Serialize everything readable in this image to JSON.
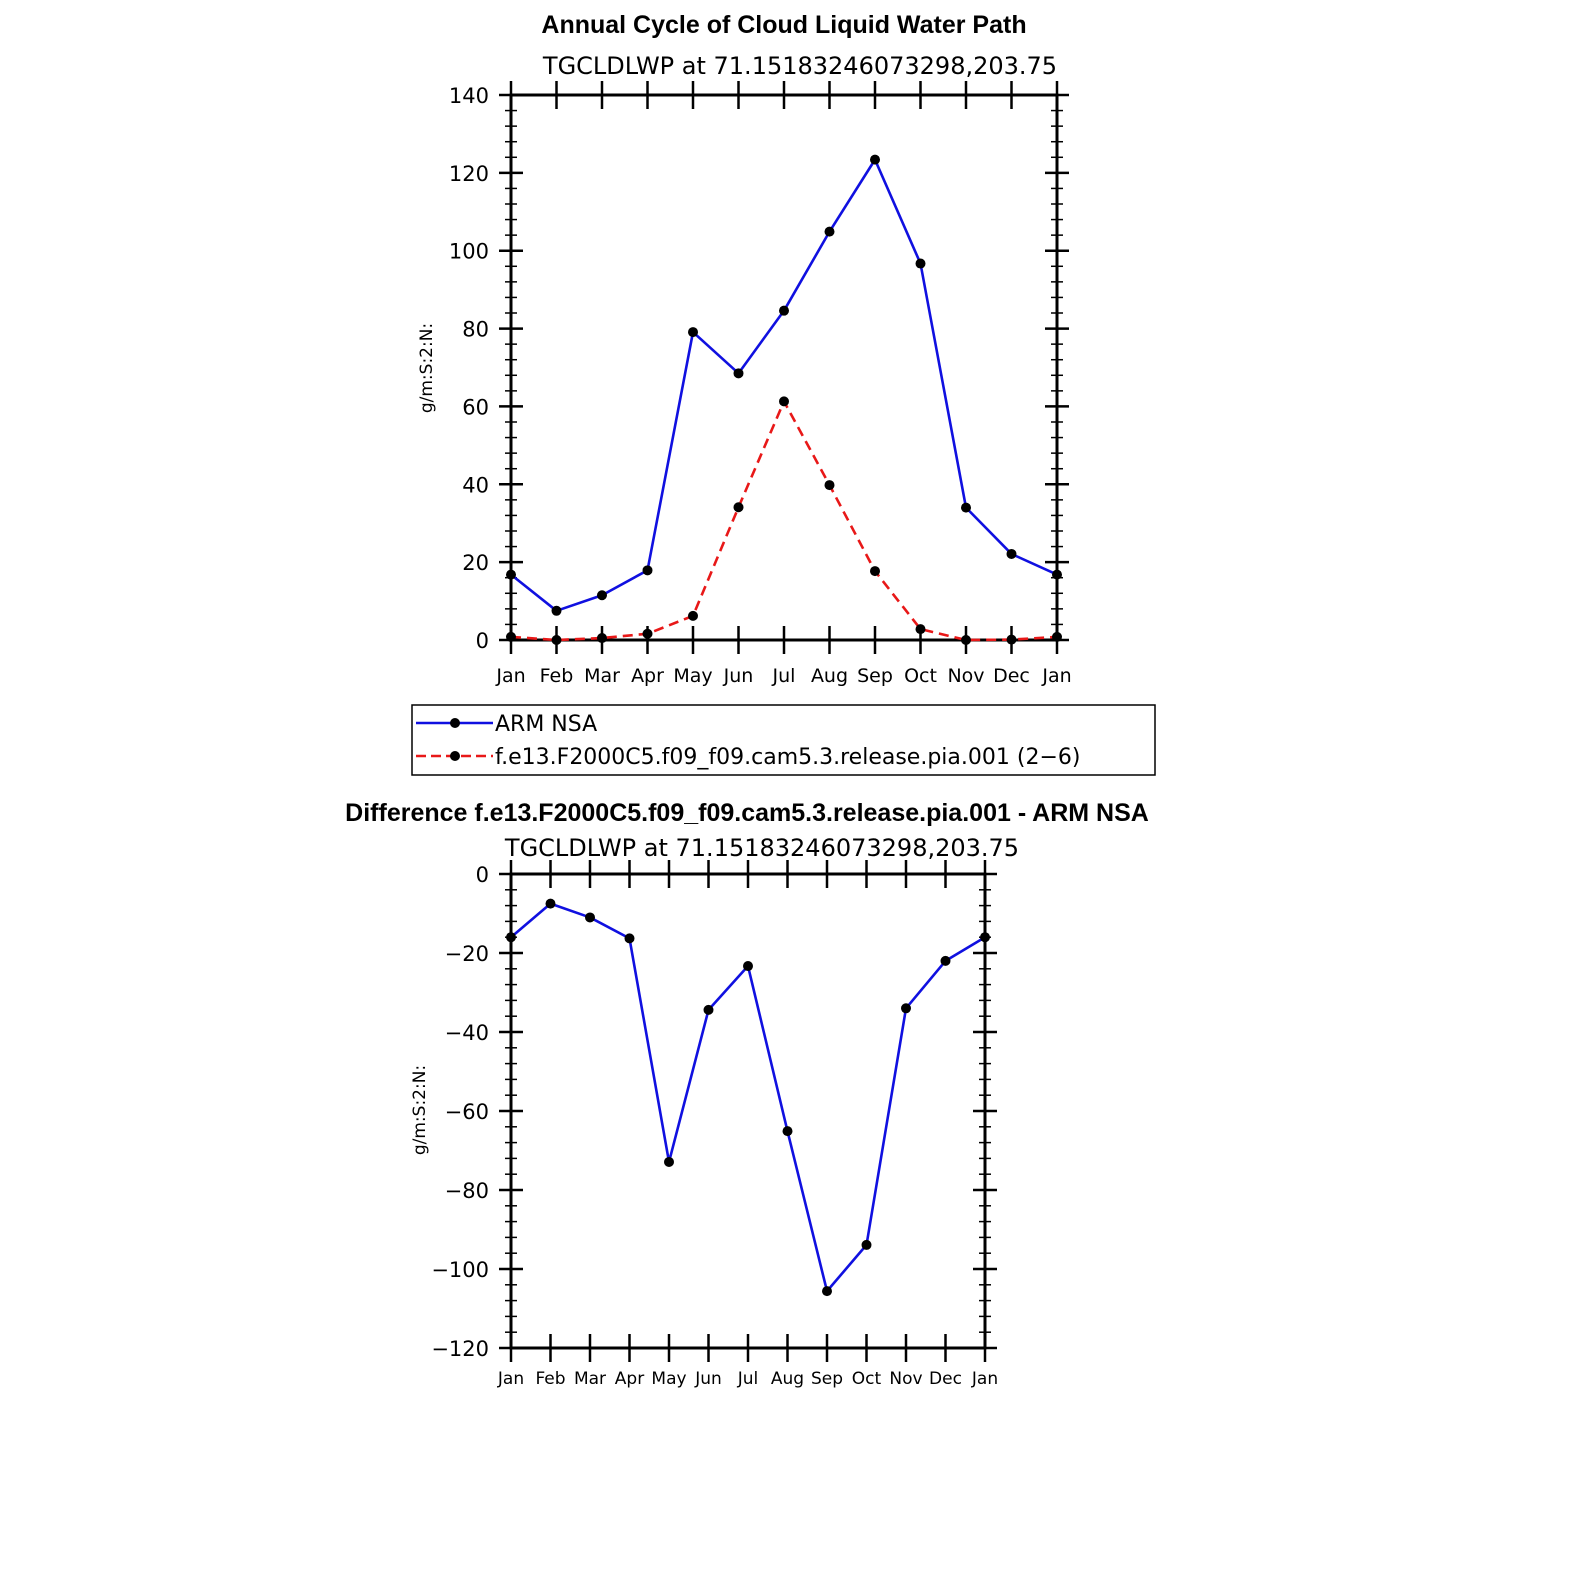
{
  "colors": {
    "blue": "#1010e0",
    "red": "#e81818",
    "marker": "#000000"
  },
  "top": {
    "title": "Annual Cycle of Cloud Liquid Water Path",
    "subtitle": "TGCLDLWP at 71.15183246073298,203.75",
    "ylabel": "g/m:S:2:N:",
    "legend": [
      {
        "label": "ARM NSA"
      },
      {
        "label": "f.e13.F2000C5.f09_f09.cam5.3.release.pia.001 (2−6)"
      }
    ]
  },
  "bottom": {
    "title": "Difference f.e13.F2000C5.f09_f09.cam5.3.release.pia.001 - ARM NSA",
    "subtitle": "TGCLDLWP at 71.15183246073298,203.75",
    "ylabel": "g/m:S:2:N:"
  },
  "chart_data": [
    {
      "type": "line",
      "title": "Annual Cycle of Cloud Liquid Water Path",
      "subtitle": "TGCLDLWP at 71.15183246073298,203.75",
      "ylabel": "g/m:S:2:N:",
      "xlabel": "",
      "categories": [
        "Jan",
        "Feb",
        "Mar",
        "Apr",
        "May",
        "Jun",
        "Jul",
        "Aug",
        "Sep",
        "Oct",
        "Nov",
        "Dec",
        "Jan"
      ],
      "ylim": [
        0,
        140
      ],
      "yticks": [
        0,
        20,
        40,
        60,
        80,
        100,
        120,
        140
      ],
      "yticklabels": [
        "0",
        "20",
        "40",
        "60",
        "80",
        "100",
        "120",
        "140"
      ],
      "legend_position": "bottom",
      "series": [
        {
          "name": "ARM NSA",
          "style": "solid",
          "values": [
            16.8,
            7.5,
            11.5,
            17.9,
            79.1,
            68.5,
            84.6,
            104.9,
            123.4,
            96.7,
            34.0,
            22.1,
            16.8
          ]
        },
        {
          "name": "f.e13.F2000C5.f09_f09.cam5.3.release.pia.001 (2−6)",
          "style": "dashed",
          "values": [
            0.8,
            0.0,
            0.5,
            1.6,
            6.2,
            34.1,
            61.3,
            39.8,
            17.7,
            2.8,
            0.0,
            0.1,
            0.8
          ]
        }
      ]
    },
    {
      "type": "line",
      "title": "Difference f.e13.F2000C5.f09_f09.cam5.3.release.pia.001 - ARM NSA",
      "subtitle": "TGCLDLWP at 71.15183246073298,203.75",
      "ylabel": "g/m:S:2:N:",
      "xlabel": "",
      "categories": [
        "Jan",
        "Feb",
        "Mar",
        "Apr",
        "May",
        "Jun",
        "Jul",
        "Aug",
        "Sep",
        "Oct",
        "Nov",
        "Dec",
        "Jan"
      ],
      "ylim": [
        -120,
        0
      ],
      "yticks": [
        0,
        -20,
        -40,
        -60,
        -80,
        -100,
        -120
      ],
      "yticklabels": [
        "0",
        "−20",
        "−40",
        "−60",
        "−80",
        "−100",
        "−120"
      ],
      "series": [
        {
          "style": "solid",
          "values": [
            -16.0,
            -7.5,
            -11.0,
            -16.3,
            -72.9,
            -34.4,
            -23.3,
            -65.1,
            -105.6,
            -93.9,
            -34.0,
            -22.0,
            -16.0
          ]
        }
      ]
    }
  ]
}
